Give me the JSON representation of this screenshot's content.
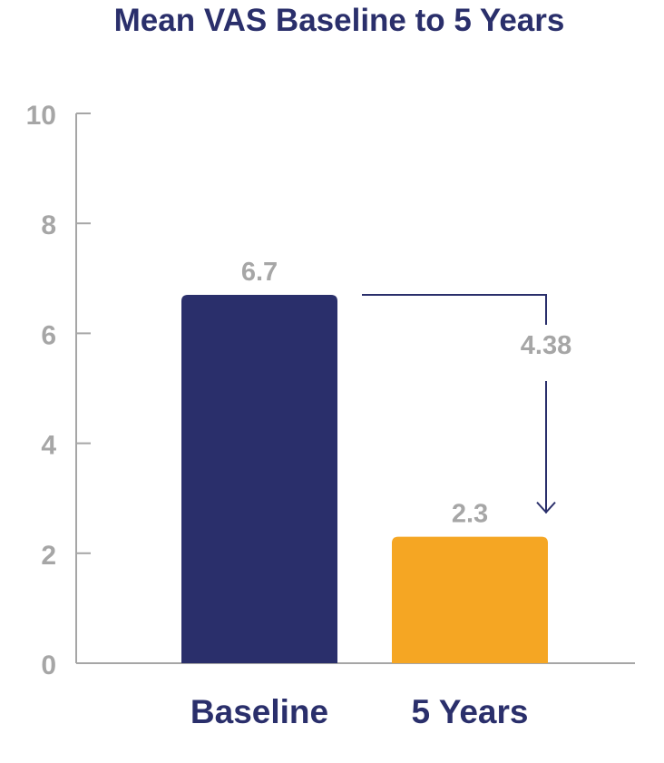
{
  "chart_data": {
    "type": "bar",
    "title": "Mean VAS Baseline to 5 Years",
    "xlabel": "",
    "ylabel": "",
    "categories": [
      "Baseline",
      "5 Years"
    ],
    "values": [
      6.7,
      2.3
    ],
    "value_labels": [
      "6.7",
      "2.3"
    ],
    "ylim": [
      0,
      10
    ],
    "yticks": [
      0,
      2,
      4,
      6,
      8,
      10
    ],
    "grid": false,
    "legend": "none",
    "bar_colors": [
      "#2a2f6b",
      "#f5a623"
    ],
    "annotation": {
      "text": "4.38",
      "from": 6.7,
      "to": 2.3,
      "arrow_color": "#2a2f6b"
    },
    "colors": {
      "title": "#2a2f6b",
      "category_text": "#2a2f6b",
      "tick_text": "#a6a6a6",
      "value_text": "#a6a6a6",
      "axis": "#a6a6a6"
    }
  }
}
